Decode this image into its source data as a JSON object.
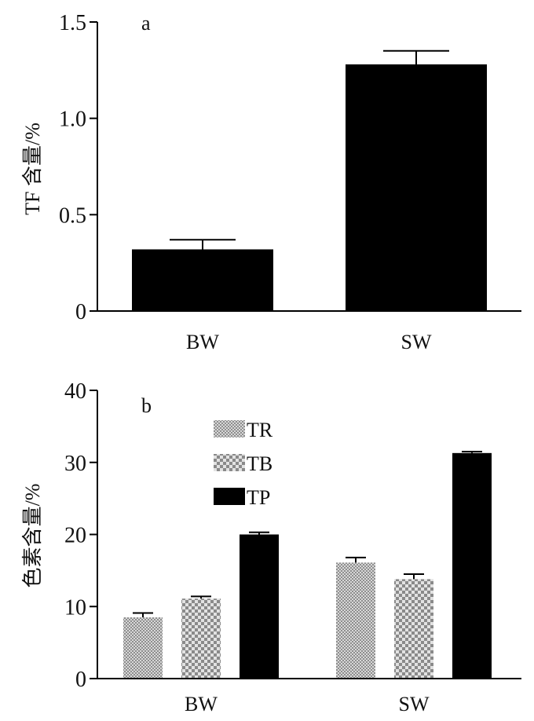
{
  "chart_data": [
    {
      "type": "bar",
      "panel_label": "a",
      "ylabel": "TF 含量/%",
      "ylim": [
        0,
        1.5
      ],
      "yticks": [
        "0",
        "0.5",
        "1.0",
        "1.5"
      ],
      "categories": [
        "BW",
        "SW"
      ],
      "series": [
        {
          "values": [
            0.32,
            1.28
          ],
          "errors": [
            0.05,
            0.07
          ],
          "color": "#000000"
        }
      ],
      "grid": false
    },
    {
      "type": "bar",
      "panel_label": "b",
      "ylabel": "色素含量/%",
      "ylim": [
        0,
        40
      ],
      "yticks": [
        "0",
        "10",
        "20",
        "30",
        "40"
      ],
      "categories": [
        "BW",
        "SW"
      ],
      "legend_position": "top-left",
      "series": [
        {
          "name": "TR",
          "values": [
            8.5,
            16.1
          ],
          "errors": [
            0.6,
            0.7
          ],
          "pattern": "fine-checker-gray"
        },
        {
          "name": "TB",
          "values": [
            11.1,
            13.8
          ],
          "errors": [
            0.3,
            0.7
          ],
          "pattern": "coarse-checker-gray"
        },
        {
          "name": "TP",
          "values": [
            20.0,
            31.3
          ],
          "errors": [
            0.3,
            0.2
          ],
          "color": "#000000"
        }
      ],
      "grid": false
    }
  ]
}
